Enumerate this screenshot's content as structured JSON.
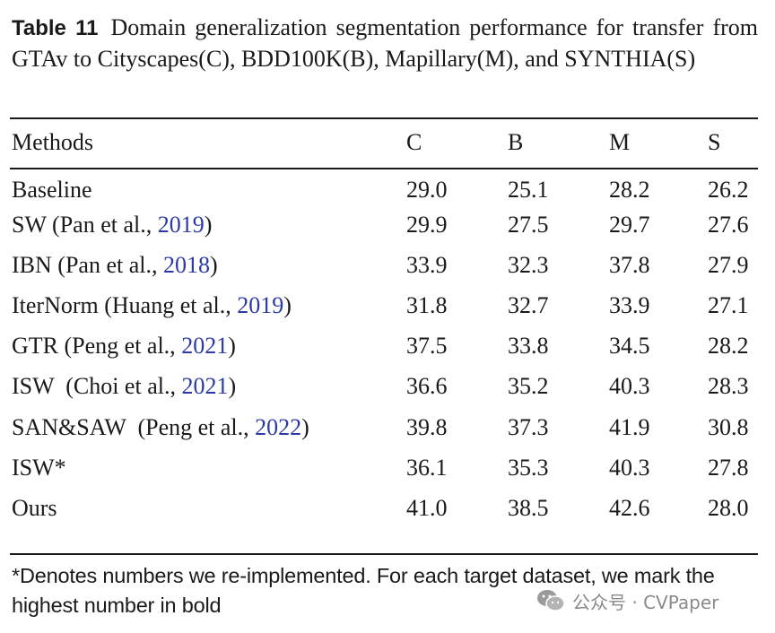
{
  "caption": {
    "label": "Table 11",
    "text": "Domain generalization segmentation performance for transfer from GTAv to Cityscapes(C), BDD100K(B), Mapillary(M), and SYNTHIA(S)"
  },
  "table": {
    "headers": [
      "Methods",
      "C",
      "B",
      "M",
      "S"
    ],
    "rows": [
      {
        "name": "Baseline",
        "cite_pre": "",
        "cite_year": "",
        "cite_post": "",
        "c": "29.0",
        "b": "25.1",
        "m": "28.2",
        "s": "26.2"
      },
      {
        "name": "SW",
        "cite_pre": " (Pan et al., ",
        "cite_year": "2019",
        "cite_post": ")",
        "c": "29.9",
        "b": "27.5",
        "m": "29.7",
        "s": "27.6"
      },
      {
        "name": "IBN",
        "cite_pre": " (Pan et al., ",
        "cite_year": "2018",
        "cite_post": ")",
        "c": "33.9",
        "b": "32.3",
        "m": "37.8",
        "s": "27.9"
      },
      {
        "name": "IterNorm",
        "cite_pre": " (Huang et al., ",
        "cite_year": "2019",
        "cite_post": ")",
        "c": "31.8",
        "b": "32.7",
        "m": "33.9",
        "s": "27.1"
      },
      {
        "name": "GTR",
        "cite_pre": " (Peng et al., ",
        "cite_year": "2021",
        "cite_post": ")",
        "c": "37.5",
        "b": "33.8",
        "m": "34.5",
        "s": "28.2"
      },
      {
        "name": "ISW",
        "cite_pre": "  (Choi et al., ",
        "cite_year": "2021",
        "cite_post": ")",
        "c": "36.6",
        "b": "35.2",
        "m": "40.3",
        "s": "28.3"
      },
      {
        "name": "SAN&SAW",
        "cite_pre": "  (Peng et al., ",
        "cite_year": "2022",
        "cite_post": ")",
        "c": "39.8",
        "b": "37.3",
        "m": "41.9",
        "s": "30.8"
      },
      {
        "name": "ISW*",
        "cite_pre": "",
        "cite_year": "",
        "cite_post": "",
        "c": "36.1",
        "b": "35.3",
        "m": "40.3",
        "s": "27.8"
      },
      {
        "name": "Ours",
        "cite_pre": "",
        "cite_year": "",
        "cite_post": "",
        "c": "41.0",
        "b": "38.5",
        "m": "42.6",
        "s": "28.0"
      }
    ]
  },
  "footnote": "*Denotes numbers we re-implemented. For each target dataset, we mark the highest number in bold",
  "watermark": {
    "text": "公众号 · CVPaper",
    "icon": "wechat-icon"
  },
  "colors": {
    "citation": "#2b3aa6",
    "text": "#1a1a1a",
    "watermark": "#8a8a8a"
  }
}
